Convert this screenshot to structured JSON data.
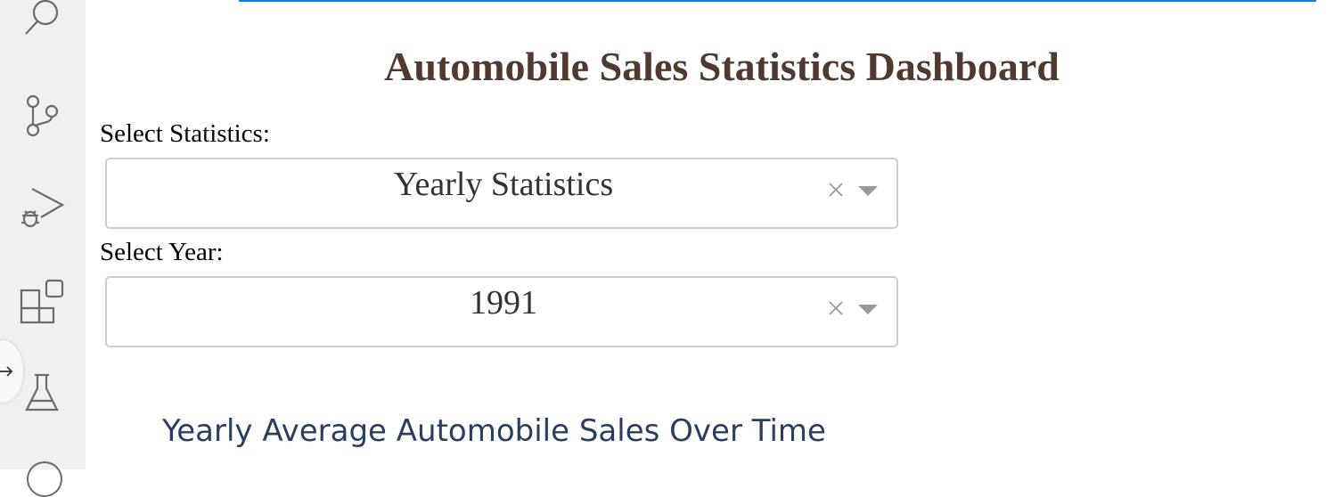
{
  "activity_bar": {
    "icons": [
      "search-icon",
      "source-control-icon",
      "run-debug-icon",
      "extensions-icon",
      "testing-icon"
    ],
    "icon_color": "#6b6b6b",
    "background": "#f0f0f0"
  },
  "dashboard": {
    "title": "Automobile Sales Statistics Dashboard",
    "title_color": "#503a30"
  },
  "statistics_select": {
    "label": "Select Statistics:",
    "value": "Yearly Statistics",
    "clear_symbol": "×"
  },
  "year_select": {
    "label": "Select Year:",
    "value": "1991",
    "clear_symbol": "×"
  },
  "chart": {
    "title": "Yearly Average Automobile Sales Over Time",
    "title_color": "#2a3f5f"
  },
  "accent_color": "#0a84d8"
}
